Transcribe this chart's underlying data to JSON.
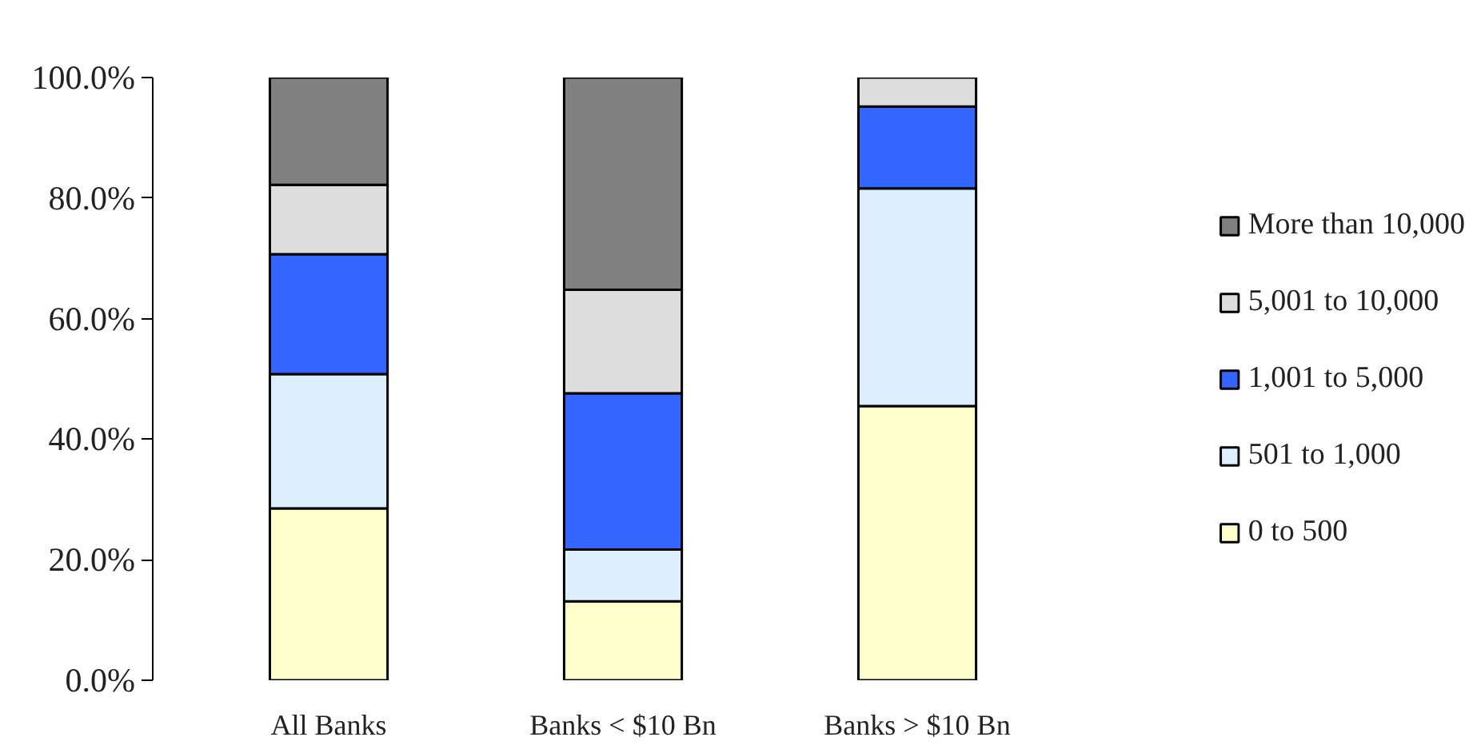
{
  "chart_data": {
    "type": "bar",
    "stacked": true,
    "categories": [
      "All Banks",
      "Banks < $10 Bn",
      "Banks > $10 Bn"
    ],
    "series": [
      {
        "name": "0 to 500",
        "color": "#ffffcc",
        "values": [
          28.5,
          13.1,
          45.5
        ]
      },
      {
        "name": "501 to 1,000",
        "color": "#ddeeff",
        "values": [
          22.3,
          8.6,
          36.1
        ]
      },
      {
        "name": "1,001 to 5,000",
        "color": "#3366ff",
        "values": [
          19.9,
          25.9,
          13.6
        ]
      },
      {
        "name": "5,001 to 10,000",
        "color": "#dddddd",
        "values": [
          11.5,
          17.2,
          4.8
        ]
      },
      {
        "name": "More than 10,000",
        "color": "#808080",
        "values": [
          17.8,
          35.2,
          null
        ]
      }
    ],
    "ylim": [
      0,
      100
    ],
    "yticks": [
      {
        "value": 0,
        "label": "0.0%"
      },
      {
        "value": 20,
        "label": "20.0%"
      },
      {
        "value": 40,
        "label": "40.0%"
      },
      {
        "value": 60,
        "label": "60.0%"
      },
      {
        "value": 80,
        "label": "80.0%"
      },
      {
        "value": 100,
        "label": "100.0%"
      }
    ],
    "legend": "right"
  }
}
